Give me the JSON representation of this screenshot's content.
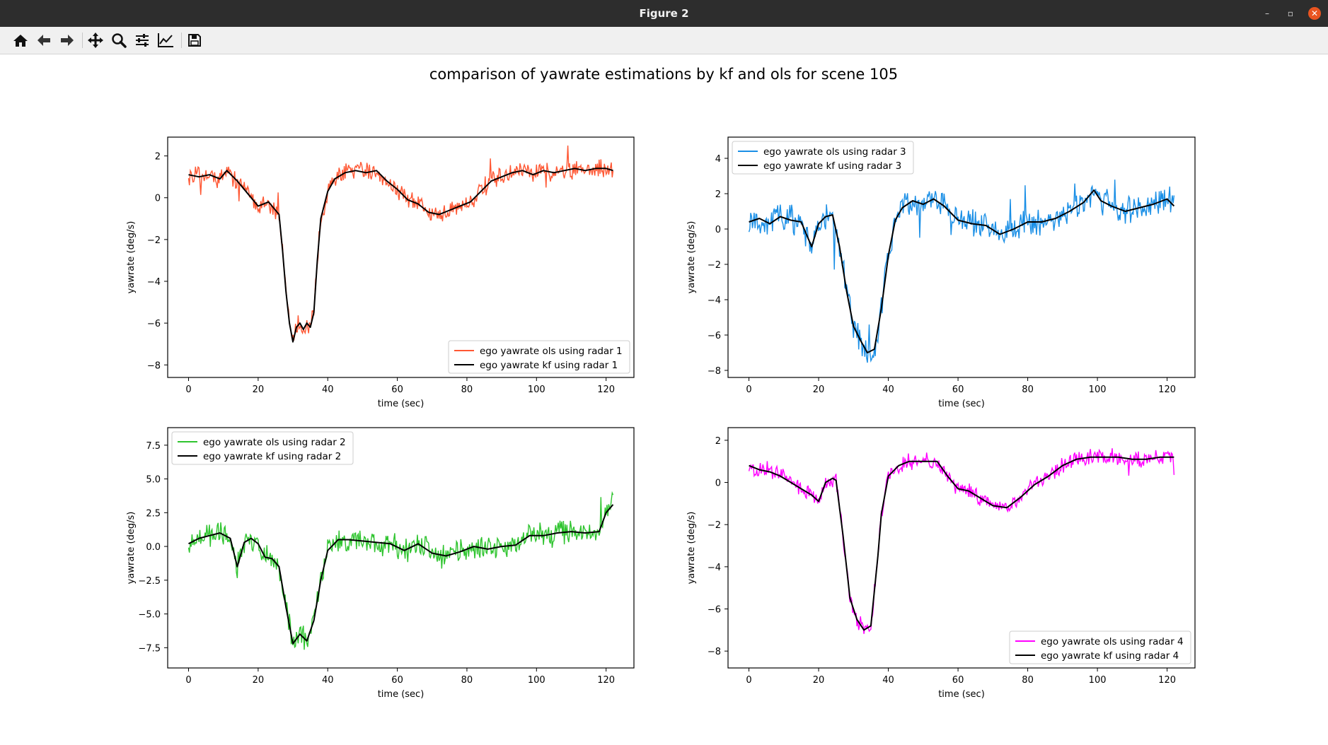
{
  "window": {
    "title": "Figure 2",
    "minimize_glyph": "–",
    "maximize_glyph": "▫",
    "close_glyph": "✕"
  },
  "toolbar": {
    "icons": [
      "home-icon",
      "back-icon",
      "forward-icon",
      "pan-icon",
      "zoom-icon",
      "subplots-config-icon",
      "edit-axes-icon",
      "save-icon"
    ]
  },
  "figure": {
    "suptitle": "comparison of yawrate estimations by kf and ols for scene 105"
  },
  "chart_data": [
    {
      "type": "line",
      "xlabel": "time (sec)",
      "ylabel": "yawrate (deg/s)",
      "xlim": [
        -6,
        128
      ],
      "ylim": [
        -8.6,
        2.9
      ],
      "xticks": [
        0,
        20,
        40,
        60,
        80,
        100,
        120
      ],
      "xtick_labels": [
        "0",
        "20",
        "40",
        "60",
        "80",
        "100",
        "120"
      ],
      "yticks": [
        -8,
        -6,
        -4,
        -2,
        0,
        2
      ],
      "ytick_labels": [
        "−8",
        "−6",
        "−4",
        "−2",
        "0",
        "2"
      ],
      "legend_position": "lower-right",
      "noise": 0.35,
      "series": [
        {
          "name": "ego yawrate ols using radar 1",
          "color": "#ff5733",
          "role": "ols"
        },
        {
          "name": "ego yawrate kf using radar 1",
          "color": "#000000",
          "role": "kf"
        }
      ],
      "kf_points": {
        "x": [
          0,
          3,
          6,
          9,
          11,
          14,
          17,
          20,
          23,
          26,
          27,
          28,
          29,
          30,
          31,
          32,
          33,
          34,
          35,
          36,
          37,
          38,
          40,
          42,
          45,
          48,
          51,
          54,
          57,
          60,
          63,
          66,
          69,
          72,
          75,
          78,
          81,
          84,
          87,
          90,
          93,
          96,
          99,
          102,
          105,
          108,
          111,
          114,
          117,
          120,
          122
        ],
        "y": [
          1.1,
          1.0,
          1.1,
          0.9,
          1.3,
          0.8,
          0.2,
          -0.4,
          -0.2,
          -0.8,
          -2.5,
          -4.5,
          -6.0,
          -6.9,
          -6.2,
          -6.0,
          -6.3,
          -6.0,
          -6.2,
          -5.5,
          -3.0,
          -1.0,
          0.3,
          0.9,
          1.2,
          1.3,
          1.2,
          1.3,
          0.8,
          0.4,
          -0.1,
          -0.3,
          -0.7,
          -0.8,
          -0.6,
          -0.4,
          -0.2,
          0.3,
          0.8,
          1.0,
          1.2,
          1.3,
          1.1,
          1.3,
          1.2,
          1.3,
          1.4,
          1.3,
          1.4,
          1.4,
          1.3
        ]
      }
    },
    {
      "type": "line",
      "xlabel": "time (sec)",
      "ylabel": "yawrate (deg/s)",
      "xlim": [
        -6,
        128
      ],
      "ylim": [
        -8.4,
        5.2
      ],
      "xticks": [
        0,
        20,
        40,
        60,
        80,
        100,
        120
      ],
      "xtick_labels": [
        "0",
        "20",
        "40",
        "60",
        "80",
        "100",
        "120"
      ],
      "yticks": [
        -8,
        -6,
        -4,
        -2,
        0,
        2,
        4
      ],
      "ytick_labels": [
        "−8",
        "−6",
        "−4",
        "−2",
        "0",
        "2",
        "4"
      ],
      "legend_position": "upper-left",
      "noise": 0.6,
      "series": [
        {
          "name": "ego yawrate ols using radar 3",
          "color": "#1a8fe6",
          "role": "ols"
        },
        {
          "name": "ego yawrate kf using radar 3",
          "color": "#000000",
          "role": "kf"
        }
      ],
      "kf_points": {
        "x": [
          0,
          3,
          6,
          9,
          12,
          15,
          18,
          20,
          22,
          24,
          26,
          28,
          30,
          32,
          34,
          36,
          38,
          40,
          42,
          44,
          47,
          50,
          53,
          56,
          60,
          64,
          68,
          72,
          76,
          80,
          84,
          88,
          92,
          96,
          99,
          101,
          104,
          108,
          112,
          116,
          120,
          122
        ],
        "y": [
          0.4,
          0.6,
          0.3,
          0.7,
          0.5,
          0.4,
          -1.0,
          0.3,
          0.7,
          0.8,
          -1.0,
          -3.5,
          -5.5,
          -6.3,
          -7.0,
          -6.8,
          -4.5,
          -1.5,
          0.5,
          1.2,
          1.6,
          1.4,
          1.7,
          1.3,
          0.5,
          0.3,
          0.2,
          -0.3,
          0.0,
          0.4,
          0.4,
          0.6,
          1.0,
          1.5,
          2.2,
          1.6,
          1.3,
          1.0,
          1.2,
          1.4,
          1.7,
          1.3
        ]
      }
    },
    {
      "type": "line",
      "xlabel": "time (sec)",
      "ylabel": "yawrate (deg/s)",
      "xlim": [
        -6,
        128
      ],
      "ylim": [
        -9.0,
        8.8
      ],
      "xticks": [
        0,
        20,
        40,
        60,
        80,
        100,
        120
      ],
      "xtick_labels": [
        "0",
        "20",
        "40",
        "60",
        "80",
        "100",
        "120"
      ],
      "yticks": [
        -7.5,
        -5.0,
        -2.5,
        0.0,
        2.5,
        5.0,
        7.5
      ],
      "ytick_labels": [
        "−7.5",
        "−5.0",
        "−2.5",
        "0.0",
        "2.5",
        "5.0",
        "7.5"
      ],
      "legend_position": "upper-left",
      "noise": 0.7,
      "series": [
        {
          "name": "ego yawrate ols using radar 2",
          "color": "#2ec42e",
          "role": "ols"
        },
        {
          "name": "ego yawrate kf using radar 2",
          "color": "#000000",
          "role": "kf"
        }
      ],
      "kf_points": {
        "x": [
          0,
          3,
          6,
          9,
          12,
          14,
          16,
          18,
          20,
          22,
          24,
          26,
          28,
          30,
          32,
          34,
          36,
          38,
          40,
          43,
          46,
          50,
          54,
          58,
          62,
          66,
          70,
          74,
          78,
          82,
          86,
          90,
          94,
          98,
          102,
          106,
          110,
          114,
          118,
          120,
          122
        ],
        "y": [
          0.2,
          0.6,
          0.8,
          1.0,
          0.6,
          -1.5,
          0.3,
          0.6,
          0.2,
          -0.8,
          -0.9,
          -1.5,
          -4.5,
          -7.2,
          -6.5,
          -7.0,
          -5.5,
          -2.5,
          -0.3,
          0.5,
          0.5,
          0.4,
          0.3,
          0.2,
          -0.3,
          0.2,
          -0.5,
          -0.7,
          -0.4,
          0.0,
          -0.2,
          0.0,
          0.1,
          0.8,
          0.8,
          1.0,
          1.1,
          1.0,
          1.1,
          2.5,
          3.1
        ]
      }
    },
    {
      "type": "line",
      "xlabel": "time (sec)",
      "ylabel": "yawrate (deg/s)",
      "xlim": [
        -6,
        128
      ],
      "ylim": [
        -8.8,
        2.6
      ],
      "xticks": [
        0,
        20,
        40,
        60,
        80,
        100,
        120
      ],
      "xtick_labels": [
        "0",
        "20",
        "40",
        "60",
        "80",
        "100",
        "120"
      ],
      "yticks": [
        -8,
        -6,
        -4,
        -2,
        0,
        2
      ],
      "ytick_labels": [
        "−8",
        "−6",
        "−4",
        "−2",
        "0",
        "2"
      ],
      "legend_position": "lower-right",
      "noise": 0.3,
      "series": [
        {
          "name": "ego yawrate ols using radar 4",
          "color": "#ff00ff",
          "role": "ols"
        },
        {
          "name": "ego yawrate kf using radar 4",
          "color": "#000000",
          "role": "kf"
        }
      ],
      "kf_points": {
        "x": [
          0,
          3,
          6,
          9,
          12,
          15,
          18,
          20,
          22,
          24,
          25,
          27,
          29,
          31,
          33,
          35,
          37,
          38,
          40,
          43,
          46,
          50,
          54,
          57,
          60,
          63,
          66,
          70,
          74,
          78,
          82,
          86,
          90,
          94,
          98,
          102,
          106,
          110,
          114,
          118,
          122
        ],
        "y": [
          0.8,
          0.6,
          0.5,
          0.3,
          0.0,
          -0.3,
          -0.6,
          -0.9,
          0.0,
          0.2,
          0.1,
          -2.5,
          -5.5,
          -6.5,
          -7.0,
          -6.8,
          -3.5,
          -1.5,
          0.3,
          0.8,
          1.0,
          1.0,
          1.0,
          0.3,
          -0.3,
          -0.4,
          -0.7,
          -1.1,
          -1.2,
          -0.7,
          -0.1,
          0.3,
          0.8,
          1.1,
          1.2,
          1.2,
          1.2,
          1.1,
          1.1,
          1.2,
          1.2
        ]
      }
    }
  ]
}
